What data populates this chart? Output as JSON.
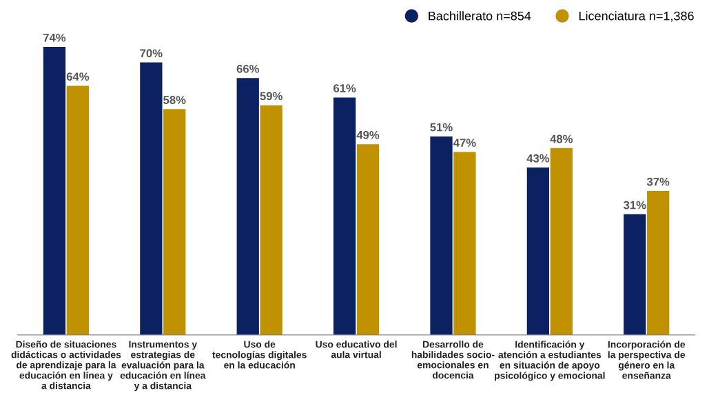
{
  "chart_data": {
    "type": "bar",
    "categories": [
      "Diseño de situaciones\ndidácticas o actividades\nde aprendizaje para la\neducación en línea y\na distancia",
      "Instrumentos y\nestrategias de\nevaluación para la\neducación en línea\ny a distancia",
      "Uso de\ntecnologías digitales\nen la educación",
      "Uso educativo del\naula virtual",
      "Desarrollo de\nhabilidades socio-\nemocionales en\ndocencia",
      "Identificación y\natención a estudiantes\nen situación de apoyo\npsicológico y emocional",
      "Incorporación de\nla perspectiva de\ngénero en la\nenseñanza"
    ],
    "series": [
      {
        "name": "Bachillerato n=854",
        "color": "#0c2161",
        "values": [
          74,
          70,
          66,
          61,
          51,
          43,
          31
        ],
        "value_labels": [
          "74%",
          "70%",
          "66%",
          "61%",
          "51%",
          "43%",
          "31%"
        ]
      },
      {
        "name": "Licenciatura n=1,386",
        "color": "#c09100",
        "values": [
          64,
          58,
          59,
          49,
          47,
          48,
          37
        ],
        "value_labels": [
          "64%",
          "58%",
          "59%",
          "49%",
          "47%",
          "48%",
          "37%"
        ]
      }
    ],
    "legend": "top right",
    "marker": "circle",
    "grid": false
  }
}
